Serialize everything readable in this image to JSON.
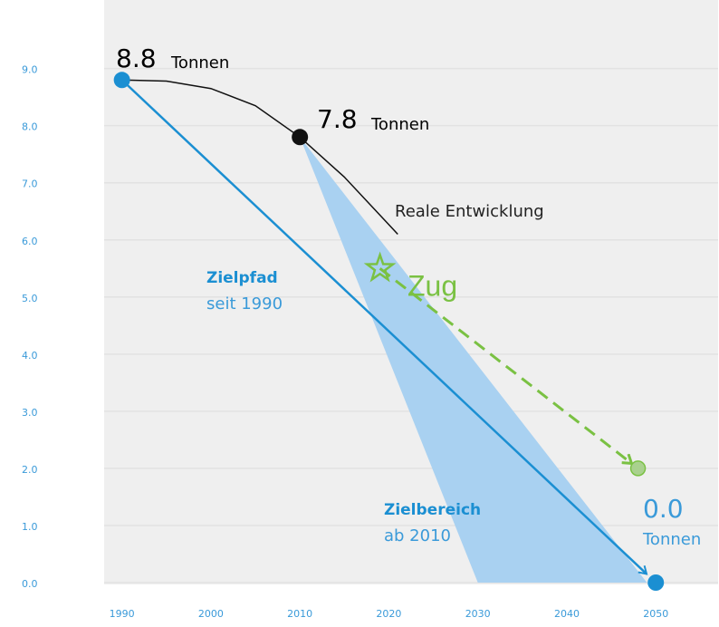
{
  "chart_data": {
    "type": "line",
    "xlim": [
      1988,
      2057
    ],
    "ylim": [
      0,
      10.2
    ],
    "xticks": [
      1990,
      2000,
      2010,
      2020,
      2030,
      2040,
      2050
    ],
    "yticks": [
      {
        "value": 9,
        "label": "9.0"
      },
      {
        "value": 8,
        "label": "8.0"
      },
      {
        "value": 7,
        "label": "7.0"
      },
      {
        "value": 6,
        "label": "6.0"
      },
      {
        "value": 5,
        "label": "5.0"
      },
      {
        "value": 4,
        "label": "4.0"
      },
      {
        "value": 3,
        "label": "3.0"
      },
      {
        "value": 2,
        "label": "2.0"
      },
      {
        "value": 1,
        "label": "1.0"
      },
      {
        "value": 0,
        "label": "0.0"
      }
    ],
    "grid": true,
    "series": [
      {
        "name": "Zielbereich",
        "kind": "area",
        "color": "#a9d1f1",
        "x": [
          2010,
          2030,
          2049
        ],
        "values": [
          7.8,
          0,
          0
        ]
      },
      {
        "name": "Zielpfad",
        "kind": "arrow",
        "color": "#1b8fd2",
        "x": [
          1990,
          2050
        ],
        "values": [
          8.8,
          0
        ]
      },
      {
        "name": "Reale Entwicklung",
        "kind": "line",
        "color": "#111111",
        "x": [
          1990,
          1995,
          2000,
          2005,
          2010,
          2015,
          2021
        ],
        "values": [
          8.8,
          8.78,
          8.65,
          8.35,
          7.8,
          7.1,
          6.1
        ]
      },
      {
        "name": "Zug",
        "kind": "dashed-arrow",
        "color": "#7ac143",
        "x": [
          2019,
          2048
        ],
        "values": [
          5.5,
          2.0
        ]
      }
    ],
    "points": {
      "x": [
        1990,
        2010,
        2050
      ],
      "values": [
        8.8,
        7.8,
        0
      ],
      "colors": [
        "#1b8fd2",
        "#111111",
        "#1b8fd2"
      ]
    },
    "annotations": {
      "start_value": "8.8",
      "start_unit": "Tonnen",
      "mid_value": "7.8",
      "mid_unit": "Tonnen",
      "real": "Reale Entwicklung",
      "path_title": "Zielpfad",
      "path_sub": "seit 1990",
      "range_title": "Zielbereich",
      "range_sub": "ab 2010",
      "train": "Zug",
      "end_value": "0.0",
      "end_unit": "Tonnen"
    }
  }
}
